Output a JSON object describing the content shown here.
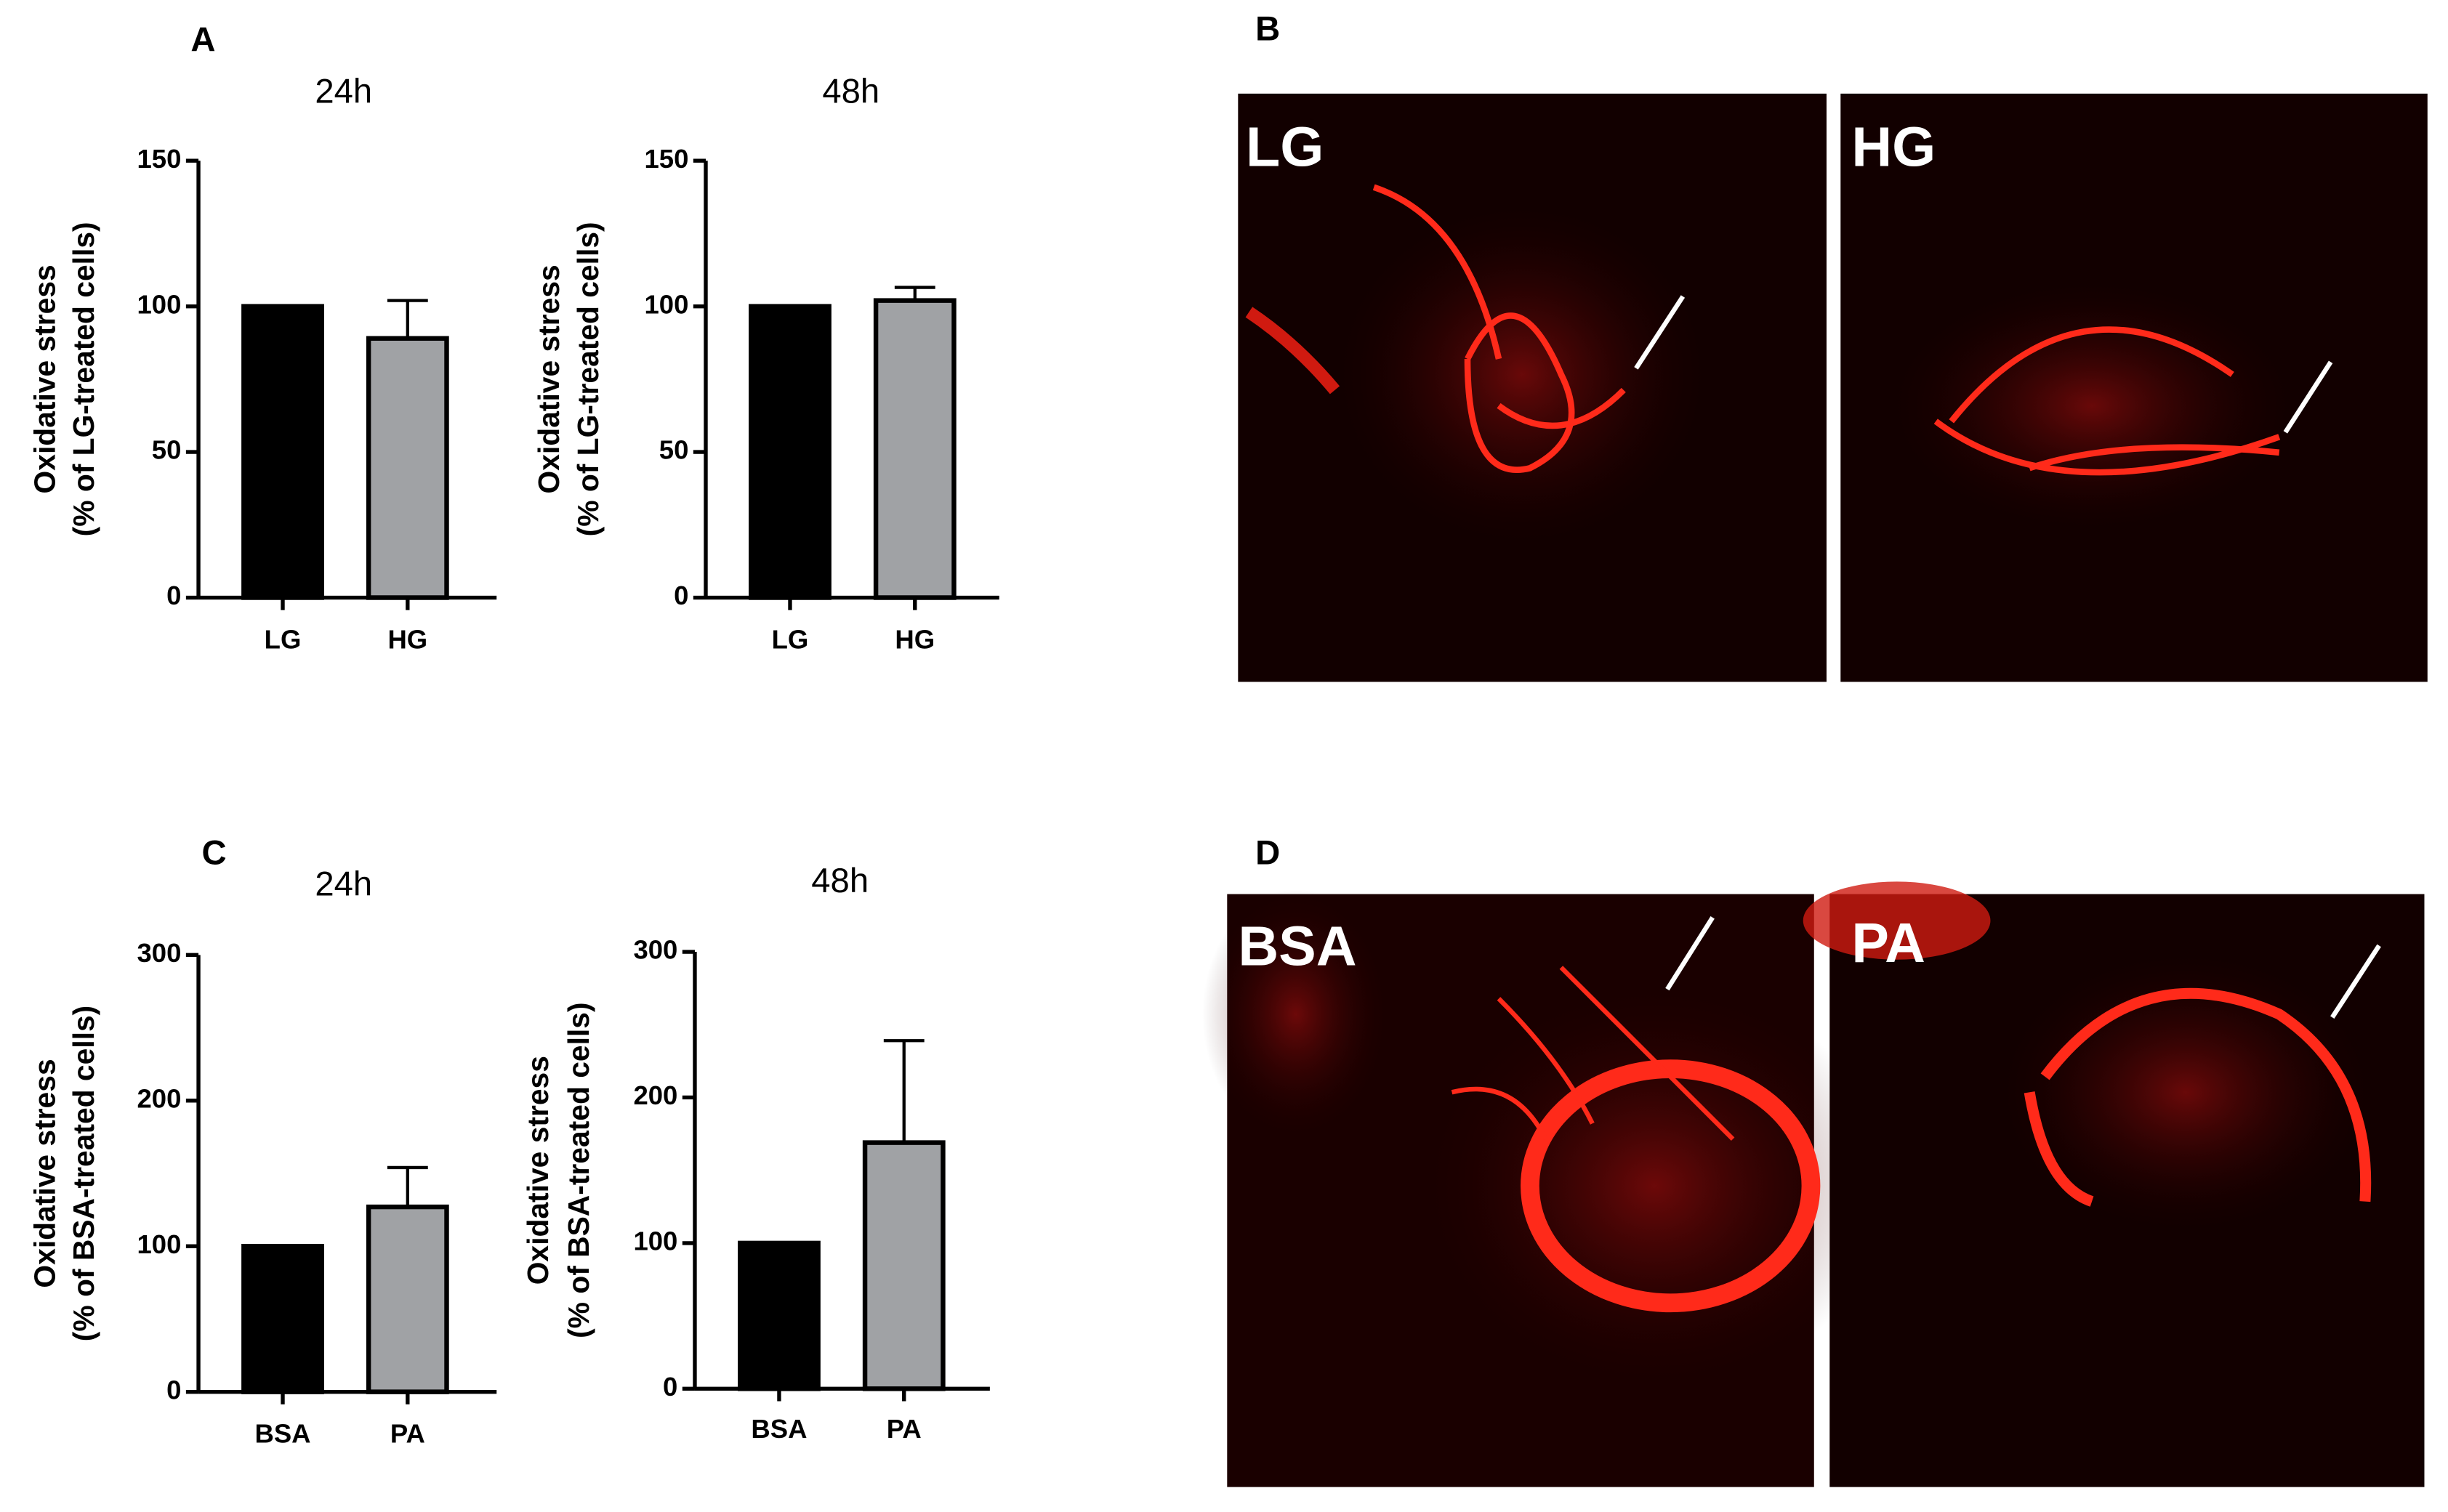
{
  "panel_labels": [
    "A",
    "B",
    "C",
    "D"
  ],
  "images": [
    {
      "label": "LG"
    },
    {
      "label": "HG"
    },
    {
      "label": "BSA"
    },
    {
      "label": "PA"
    }
  ],
  "chart_data": [
    {
      "type": "bar",
      "title": "24h",
      "ylabel": [
        "Oxidative stress",
        "(% of LG-treated cells)"
      ],
      "categories": [
        "LG",
        "HG"
      ],
      "values": [
        100,
        89
      ],
      "errors": [
        null,
        13
      ],
      "colors": [
        "#000000",
        "#a0a2a5"
      ],
      "ylim": [
        0,
        150
      ],
      "yticks": [
        0,
        50,
        100,
        150
      ]
    },
    {
      "type": "bar",
      "title": "48h",
      "ylabel": [
        "Oxidative stress",
        "(% of LG-treated cells)"
      ],
      "categories": [
        "LG",
        "HG"
      ],
      "values": [
        100,
        102
      ],
      "errors": [
        null,
        4.5
      ],
      "colors": [
        "#000000",
        "#a0a2a5"
      ],
      "ylim": [
        0,
        150
      ],
      "yticks": [
        0,
        50,
        100,
        150
      ]
    },
    {
      "type": "bar",
      "title": "24h",
      "ylabel": [
        "Oxidative stress",
        "(% of BSA-treated cells)"
      ],
      "categories": [
        "BSA",
        "PA"
      ],
      "values": [
        100,
        127
      ],
      "errors": [
        null,
        27
      ],
      "colors": [
        "#000000",
        "#a0a2a5"
      ],
      "ylim": [
        0,
        300
      ],
      "yticks": [
        0,
        100,
        200,
        300
      ]
    },
    {
      "type": "bar",
      "title": "48h",
      "ylabel": [
        "Oxidative stress",
        "(% of BSA-treated cells)"
      ],
      "categories": [
        "BSA",
        "PA"
      ],
      "values": [
        100,
        169
      ],
      "errors": [
        null,
        70
      ],
      "colors": [
        "#000000",
        "#a0a2a5"
      ],
      "ylim": [
        0,
        300
      ],
      "yticks": [
        0,
        100,
        200,
        300
      ]
    }
  ]
}
